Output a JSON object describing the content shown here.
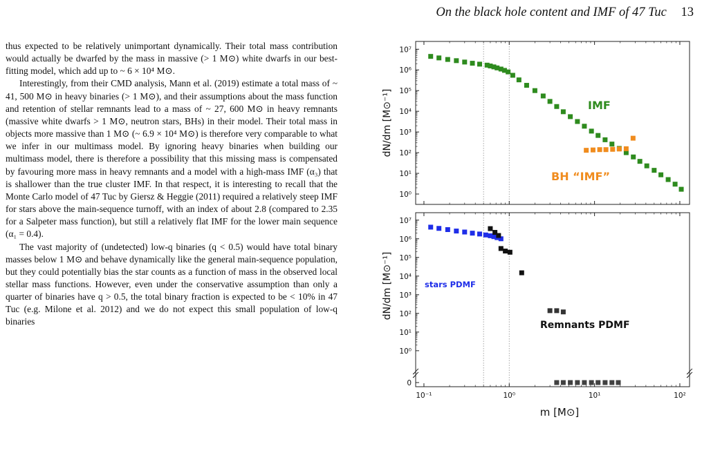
{
  "header": {
    "title": "On the black hole content and IMF of 47 Tuc",
    "page_number": "13"
  },
  "paragraphs": [
    "thus expected to be relatively unimportant dynamically. Their total mass contribution would actually be dwarfed by the mass in massive (> 1 M⊙) white dwarfs in our best-fitting model, which add up to ~ 6 × 10⁴ M⊙.",
    "Interestingly, from their CMD analysis, Mann et al. (2019) estimate a total mass of ~ 41, 500 M⊙ in heavy binaries (> 1 M⊙), and their assumptions about the mass function and retention of stellar remnants lead to a mass of ~ 27, 600 M⊙ in heavy remnants (massive white dwarfs > 1 M⊙, neutron stars, BHs) in their model. Their total mass in objects more massive than 1 M⊙ (~ 6.9 × 10⁴ M⊙) is therefore very comparable to what we infer in our multimass model. By ignoring heavy binaries when building our multimass model, there is therefore a possibility that this missing mass is compensated by favouring more mass in heavy remnants and a model with a high-mass IMF (α₃) that is shallower than the true cluster IMF. In that respect, it is interesting to recall that the Monte Carlo model of 47 Tuc by Giersz & Heggie (2011) required a relatively steep IMF for stars above the main-sequence turnoff, with an index of about 2.8 (compared to 2.35 for a Salpeter mass function), but still a relatively flat IMF for the lower main sequence (α₁ = 0.4).",
    "The vast majority of (undetected) low-q binaries (q < 0.5) would have total binary masses below 1 M⊙ and behave dynamically like the general main-sequence population, but they could potentially bias the star counts as a function of mass in the observed local stellar mass functions. However, even under the conservative assumption than only a quarter of binaries have q > 0.5, the total binary fraction is expected to be < 10% in 47 Tuc (e.g. Milone et al. 2012) and we do not expect this small population of low-q binaries"
  ],
  "chart_data": [
    {
      "type": "scatter",
      "panel": "top",
      "xscale": "log",
      "yscale": "log",
      "xlim": [
        0.08,
        130
      ],
      "ylim": [
        0.5,
        15000000.0
      ],
      "ylabel": "dN/dm [M⊙⁻¹]",
      "yticks": [
        "10⁰",
        "10¹",
        "10²",
        "10³",
        "10⁴",
        "10⁵",
        "10⁶",
        "10⁷"
      ],
      "vlines": [
        0.5,
        1.0
      ],
      "annotations": [
        {
          "text": "IMF",
          "color": "#2e8b1e"
        },
        {
          "text": "BH “IMF”",
          "color": "#f08c1e"
        }
      ],
      "series": [
        {
          "color": "#2e8b1e",
          "x": [
            0.12,
            0.15,
            0.19,
            0.24,
            0.3,
            0.37,
            0.45,
            0.55,
            0.6,
            0.66,
            0.72,
            0.8,
            0.88,
            0.97,
            1.1,
            1.3,
            1.6,
            2.0,
            2.5,
            3.0,
            3.6,
            4.3,
            5.2,
            6.3,
            7.6,
            9.2,
            11,
            13.3,
            16,
            19.5,
            23.5,
            28.5,
            34,
            41,
            50,
            60,
            73,
            88,
            104
          ],
          "y": [
            4500000.0,
            3800000.0,
            3200000.0,
            2800000.0,
            2400000.0,
            2100000.0,
            1900000.0,
            1700000.0,
            1550000.0,
            1400000.0,
            1250000.0,
            1100000.0,
            950000.0,
            800000.0,
            550000.0,
            330000.0,
            180000.0,
            100000.0,
            55000.0,
            30000.0,
            17000.0,
            9500.0,
            5500.0,
            3200.0,
            1900.0,
            1100.0,
            680,
            420,
            260,
            160,
            100,
            62,
            38,
            23,
            14,
            8.5,
            5,
            3,
            1.7
          ]
        },
        {
          "color": "#f08c1e",
          "x": [
            8.0,
            9.6,
            11.5,
            13.6,
            16.3,
            19.5,
            23.5,
            28.3
          ],
          "y": [
            130,
            135,
            140,
            140,
            145,
            150,
            155,
            500
          ]
        }
      ]
    },
    {
      "type": "scatter",
      "panel": "bottom",
      "xscale": "log",
      "yscale": "log",
      "xlim": [
        0.08,
        130
      ],
      "ylim": [
        0.5,
        15000000.0
      ],
      "xlabel": "m [M⊙]",
      "ylabel": "dN/dm [M⊙⁻¹]",
      "yticks": [
        "10⁰",
        "10¹",
        "10²",
        "10³",
        "10⁴",
        "10⁵",
        "10⁶",
        "10⁷"
      ],
      "xticks": [
        "10⁻¹",
        "10⁰",
        "10¹",
        "10²"
      ],
      "zero_label": "0",
      "vlines": [
        0.5,
        1.0
      ],
      "annotations": [
        {
          "text": "stars PDMF",
          "color": "#1f2ee8"
        },
        {
          "text": "Remnants PDMF",
          "color": "#111111"
        }
      ],
      "series": [
        {
          "color": "#1f2ee8",
          "x": [
            0.12,
            0.15,
            0.19,
            0.24,
            0.3,
            0.37,
            0.45,
            0.53,
            0.6,
            0.66,
            0.72,
            0.8
          ],
          "y": [
            4200000.0,
            3600000.0,
            3100000.0,
            2600000.0,
            2300000.0,
            2000000.0,
            1800000.0,
            1600000.0,
            1450000.0,
            1300000.0,
            1150000.0,
            1000000.0
          ]
        },
        {
          "color": "#111111",
          "x": [
            0.6,
            0.68,
            0.75,
            0.8,
            0.9,
            1.02,
            1.4,
            3.0,
            3.6,
            4.3
          ],
          "y": [
            3500000.0,
            2200000.0,
            1500000.0,
            300000.0,
            220000.0,
            190000.0,
            15000.0,
            140,
            140,
            120
          ]
        },
        {
          "color": "#111111",
          "zero_row": true,
          "x": [
            3.6,
            4.3,
            5.2,
            6.3,
            7.6,
            9.2,
            11,
            13.3,
            16,
            19
          ],
          "y": [
            0,
            0,
            0,
            0,
            0,
            0,
            0,
            0,
            0,
            0
          ]
        }
      ]
    }
  ]
}
